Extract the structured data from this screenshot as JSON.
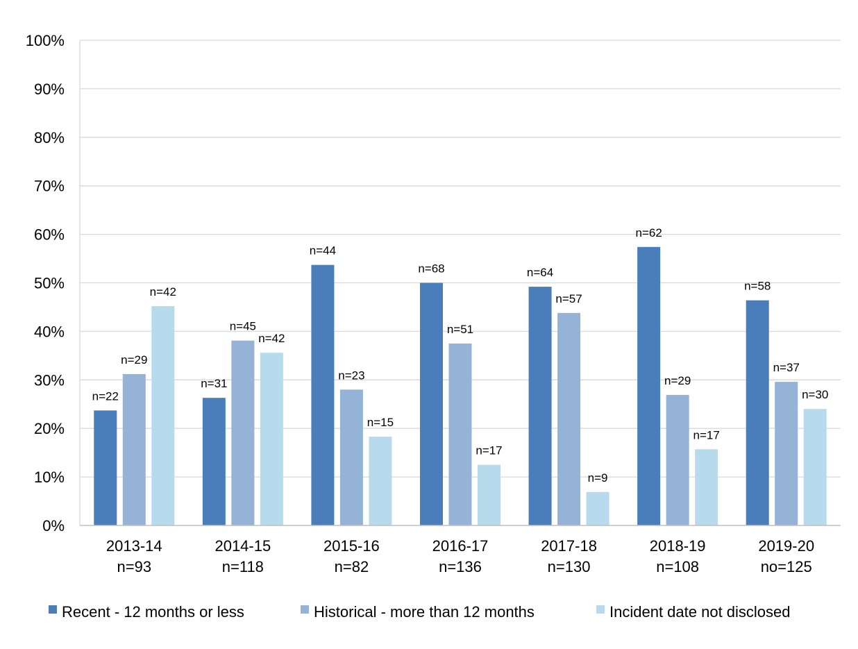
{
  "chart_data": {
    "type": "bar",
    "title": "",
    "xlabel": "",
    "ylabel": "",
    "ylim": [
      0,
      100
    ],
    "yticks": [
      "0%",
      "10%",
      "20%",
      "30%",
      "40%",
      "50%",
      "60%",
      "70%",
      "80%",
      "90%",
      "100%"
    ],
    "grid": true,
    "legend_position": "bottom",
    "categories": [
      {
        "label": "2013-14",
        "n": "n=93"
      },
      {
        "label": "2014-15",
        "n": "n=118"
      },
      {
        "label": "2015-16",
        "n": "n=82"
      },
      {
        "label": "2016-17",
        "n": "n=136"
      },
      {
        "label": "2017-18",
        "n": "n=130"
      },
      {
        "label": "2018-19",
        "n": "n=108"
      },
      {
        "label": "2019-20",
        "n": "no=125"
      }
    ],
    "series": [
      {
        "name": "Recent - 12 months or less",
        "color": "#4a7ebb",
        "values": [
          23.7,
          26.3,
          53.7,
          50.0,
          49.2,
          57.4,
          46.4
        ],
        "labels": [
          "n=22",
          "n=31",
          "n=44",
          "n=68",
          "n=64",
          "n=62",
          "n=58"
        ]
      },
      {
        "name": "Historical - more than 12 months",
        "color": "#95b3d7",
        "values": [
          31.2,
          38.1,
          28.0,
          37.5,
          43.8,
          26.9,
          29.6
        ],
        "labels": [
          "n=29",
          "n=45",
          "n=23",
          "n=51",
          "n=57",
          "n=29",
          "n=37"
        ]
      },
      {
        "name": "Incident date not disclosed",
        "color": "#b7dbed",
        "values": [
          45.2,
          35.6,
          18.3,
          12.5,
          6.9,
          15.7,
          24.0
        ],
        "labels": [
          "n=42",
          "n=42",
          "n=15",
          "n=17",
          "n=9",
          "n=17",
          "n=30"
        ]
      }
    ]
  }
}
